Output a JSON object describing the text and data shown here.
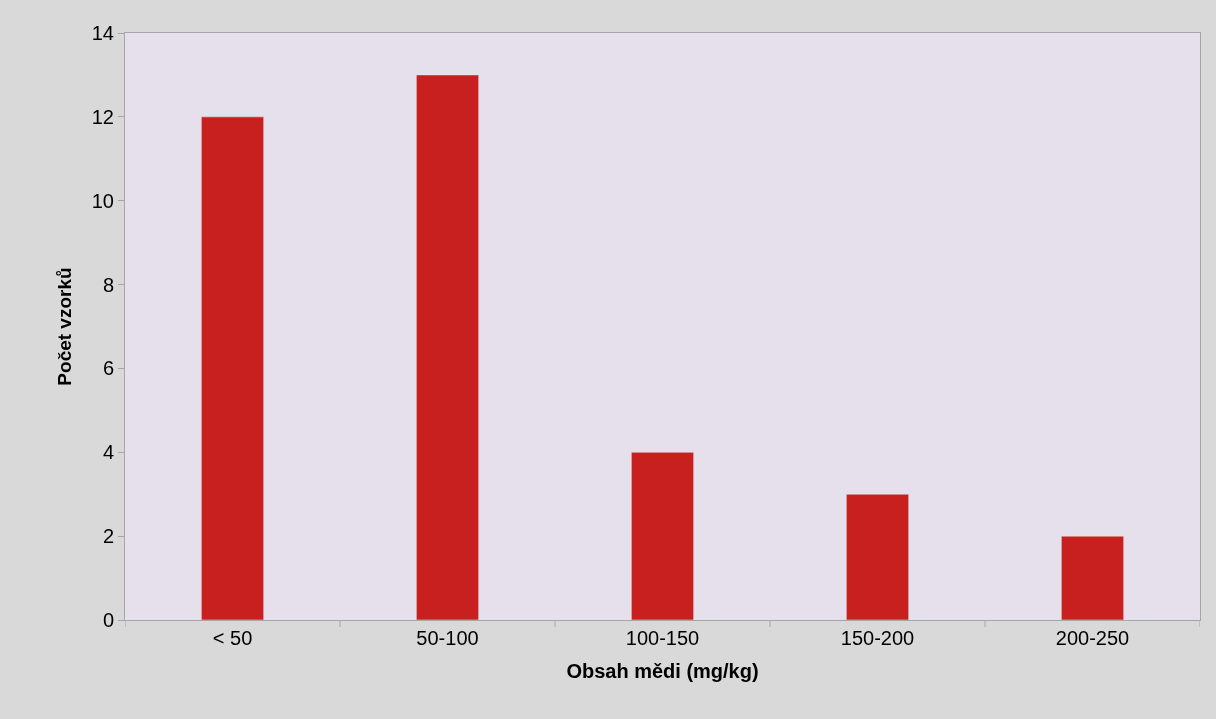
{
  "chart_data": {
    "type": "bar",
    "xlabel": "Obsah mědi (mg/kg)",
    "ylabel": "Počet vzorků",
    "categories": [
      "< 50",
      "50-100",
      "100-150",
      "150-200",
      "200-250"
    ],
    "values": [
      12,
      13,
      4,
      3,
      2
    ],
    "color": "#c8201e",
    "ylim": [
      0,
      14
    ],
    "yticks": [
      0,
      2,
      4,
      6,
      8,
      10,
      12,
      14
    ],
    "grid": false
  }
}
